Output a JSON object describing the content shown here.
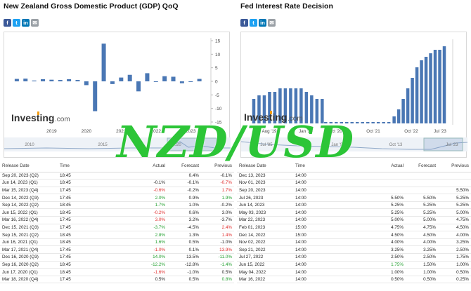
{
  "watermark_text": "NZD/USD",
  "colors": {
    "bar": "#4a77b4",
    "positive": "#1e9e2c",
    "negative": "#e02b2b",
    "watermark": "#2cc537"
  },
  "share_icons": [
    "facebook-icon",
    "twitter-icon",
    "linkedin-icon",
    "email-icon"
  ],
  "gdp": {
    "title": "New Zealand Gross Domestic Product (GDP) QoQ",
    "logo": {
      "main": "Investing",
      "suffix": ".com"
    },
    "table": {
      "headers": [
        "Release Date",
        "Time",
        "Actual",
        "Forecast",
        "Previous"
      ],
      "rows": [
        {
          "date": "Sep 20, 2023 (Q2)",
          "time": "18:45",
          "actual": "",
          "forecast": "0.4%",
          "previous": "-0.1%",
          "ac": "neu",
          "pc": "neu"
        },
        {
          "date": "Jun 14, 2023 (Q1)",
          "time": "18:45",
          "actual": "-0.1%",
          "forecast": "-0.1%",
          "previous": "-0.7%",
          "ac": "neu",
          "pc": "neg"
        },
        {
          "date": "Mar 15, 2023 (Q4)",
          "time": "17:45",
          "actual": "-0.6%",
          "forecast": "-0.2%",
          "previous": "1.7%",
          "ac": "neg",
          "pc": "neg"
        },
        {
          "date": "Dec 14, 2022 (Q3)",
          "time": "17:45",
          "actual": "2.0%",
          "forecast": "0.9%",
          "previous": "1.9%",
          "ac": "pos",
          "pc": "pos"
        },
        {
          "date": "Sep 14, 2022 (Q2)",
          "time": "18:45",
          "actual": "1.7%",
          "forecast": "1.0%",
          "previous": "-0.2%",
          "ac": "pos",
          "pc": "neu"
        },
        {
          "date": "Jun 15, 2022 (Q1)",
          "time": "18:45",
          "actual": "-0.2%",
          "forecast": "0.6%",
          "previous": "3.0%",
          "ac": "neg",
          "pc": "neu"
        },
        {
          "date": "Mar 16, 2022 (Q4)",
          "time": "17:45",
          "actual": "3.0%",
          "forecast": "3.2%",
          "previous": "-3.7%",
          "ac": "neg",
          "pc": "neu"
        },
        {
          "date": "Dec 15, 2021 (Q3)",
          "time": "17:45",
          "actual": "-3.7%",
          "forecast": "-4.5%",
          "previous": "2.4%",
          "ac": "pos",
          "pc": "neg"
        },
        {
          "date": "Sep 15, 2021 (Q2)",
          "time": "18:45",
          "actual": "2.8%",
          "forecast": "1.3%",
          "previous": "1.4%",
          "ac": "pos",
          "pc": "neg"
        },
        {
          "date": "Jun 16, 2021 (Q1)",
          "time": "18:45",
          "actual": "1.6%",
          "forecast": "0.5%",
          "previous": "-1.0%",
          "ac": "pos",
          "pc": "neu"
        },
        {
          "date": "Mar 17, 2021 (Q4)",
          "time": "17:45",
          "actual": "-1.0%",
          "forecast": "0.1%",
          "previous": "13.9%",
          "ac": "neg",
          "pc": "neg"
        },
        {
          "date": "Dec 16, 2020 (Q3)",
          "time": "17:45",
          "actual": "14.0%",
          "forecast": "13.5%",
          "previous": "-11.0%",
          "ac": "pos",
          "pc": "pos"
        },
        {
          "date": "Sep 16, 2020 (Q2)",
          "time": "18:45",
          "actual": "-12.2%",
          "forecast": "-12.8%",
          "previous": "-1.4%",
          "ac": "pos",
          "pc": "pos"
        },
        {
          "date": "Jun 17, 2020 (Q1)",
          "time": "18:45",
          "actual": "-1.6%",
          "forecast": "-1.0%",
          "previous": "0.5%",
          "ac": "neg",
          "pc": "neu"
        },
        {
          "date": "Mar 18, 2020 (Q4)",
          "time": "17:45",
          "actual": "0.5%",
          "forecast": "0.5%",
          "previous": "0.8%",
          "ac": "neu",
          "pc": "pos"
        }
      ]
    }
  },
  "fed": {
    "title": "Fed Interest Rate Decision",
    "logo": {
      "main": "Investing",
      "suffix": ".com"
    },
    "table": {
      "headers": [
        "Release Date",
        "Time",
        "Actual",
        "Forecast",
        "Previous"
      ],
      "rows": [
        {
          "date": "Dec 13, 2023",
          "time": "14:00",
          "actual": "",
          "forecast": "",
          "previous": "",
          "ac": "neu",
          "pc": "neu"
        },
        {
          "date": "Nov 01, 2023",
          "time": "14:00",
          "actual": "",
          "forecast": "",
          "previous": "",
          "ac": "neu",
          "pc": "neu"
        },
        {
          "date": "Sep 20, 2023",
          "time": "14:00",
          "actual": "",
          "forecast": "",
          "previous": "5.50%",
          "ac": "neu",
          "pc": "neu"
        },
        {
          "date": "Jul 26, 2023",
          "time": "14:00",
          "actual": "5.50%",
          "forecast": "5.50%",
          "previous": "5.25%",
          "ac": "neu",
          "pc": "neu"
        },
        {
          "date": "Jun 14, 2023",
          "time": "14:00",
          "actual": "5.25%",
          "forecast": "5.25%",
          "previous": "5.25%",
          "ac": "neu",
          "pc": "neu"
        },
        {
          "date": "May 03, 2023",
          "time": "14:00",
          "actual": "5.25%",
          "forecast": "5.25%",
          "previous": "5.00%",
          "ac": "neu",
          "pc": "neu"
        },
        {
          "date": "Mar 22, 2023",
          "time": "14:00",
          "actual": "5.00%",
          "forecast": "5.00%",
          "previous": "4.75%",
          "ac": "neu",
          "pc": "neu"
        },
        {
          "date": "Feb 01, 2023",
          "time": "15:00",
          "actual": "4.75%",
          "forecast": "4.75%",
          "previous": "4.50%",
          "ac": "neu",
          "pc": "neu"
        },
        {
          "date": "Dec 14, 2022",
          "time": "15:00",
          "actual": "4.50%",
          "forecast": "4.50%",
          "previous": "4.00%",
          "ac": "neu",
          "pc": "neu"
        },
        {
          "date": "Nov 02, 2022",
          "time": "14:00",
          "actual": "4.00%",
          "forecast": "4.00%",
          "previous": "3.25%",
          "ac": "neu",
          "pc": "neu"
        },
        {
          "date": "Sep 21, 2022",
          "time": "14:00",
          "actual": "3.25%",
          "forecast": "3.25%",
          "previous": "2.50%",
          "ac": "neu",
          "pc": "neu"
        },
        {
          "date": "Jul 27, 2022",
          "time": "14:00",
          "actual": "2.50%",
          "forecast": "2.50%",
          "previous": "1.75%",
          "ac": "neu",
          "pc": "neu"
        },
        {
          "date": "Jun 15, 2022",
          "time": "14:00",
          "actual": "1.75%",
          "forecast": "1.50%",
          "previous": "1.00%",
          "ac": "pos",
          "pc": "neu"
        },
        {
          "date": "May 04, 2022",
          "time": "14:00",
          "actual": "1.00%",
          "forecast": "1.00%",
          "previous": "0.50%",
          "ac": "neu",
          "pc": "neu"
        },
        {
          "date": "Mar 16, 2022",
          "time": "14:00",
          "actual": "0.50%",
          "forecast": "0.50%",
          "previous": "0.25%",
          "ac": "neu",
          "pc": "neu"
        }
      ]
    }
  },
  "chart_data": [
    {
      "type": "bar",
      "title": "New Zealand Gross Domestic Product (GDP) QoQ",
      "x_tick_labels": [
        "2019",
        "2020",
        "2021",
        "2022",
        "2023"
      ],
      "y_ticks": [
        "15",
        "10",
        "5",
        "0",
        "-5",
        "-10",
        "-15"
      ],
      "ylim": [
        -15,
        15
      ],
      "navigator_labels": [
        "2010",
        "2015",
        "2020"
      ],
      "x": [
        2018.0,
        2018.25,
        2018.5,
        2018.75,
        2019.0,
        2019.25,
        2019.5,
        2019.75,
        2020.0,
        2020.25,
        2020.5,
        2020.75,
        2021.0,
        2021.25,
        2021.5,
        2021.75,
        2022.0,
        2022.25,
        2022.5,
        2022.75,
        2023.0,
        2023.25
      ],
      "values": [
        0.9,
        1.0,
        0.3,
        0.8,
        0.6,
        0.5,
        0.8,
        0.5,
        -1.4,
        -11.0,
        13.9,
        -1.0,
        1.4,
        2.4,
        -3.7,
        3.0,
        -0.2,
        1.9,
        1.7,
        -0.7,
        -0.1,
        0.9
      ],
      "x_range": [
        2017.8,
        2023.5
      ]
    },
    {
      "type": "bar",
      "title": "Fed Interest Rate Decision",
      "x_tick_labels": [
        "Aug '19",
        "Jan '20",
        "Oct '20",
        "Oct '21",
        "Oct '22",
        "Jul '23"
      ],
      "navigator_labels": [
        "Jul '85",
        "Jan '91",
        "Oct '13",
        "Jul '23"
      ],
      "ylim": [
        0,
        6
      ],
      "x": [
        2018.2,
        2018.35,
        2018.5,
        2018.65,
        2018.8,
        2018.95,
        2019.1,
        2019.25,
        2019.4,
        2019.55,
        2019.7,
        2019.85,
        2020.0,
        2020.15,
        2022.2,
        2022.33,
        2022.46,
        2022.59,
        2022.72,
        2022.85,
        2022.98,
        2023.11,
        2023.24,
        2023.37,
        2023.5,
        2023.63
      ],
      "values": [
        1.75,
        2.0,
        2.0,
        2.25,
        2.25,
        2.5,
        2.5,
        2.5,
        2.5,
        2.5,
        2.25,
        2.0,
        1.75,
        1.75,
        0.5,
        1.0,
        1.75,
        2.5,
        3.25,
        4.0,
        4.5,
        4.75,
        5.0,
        5.25,
        5.25,
        5.5
      ],
      "x_range": [
        2018.0,
        2023.75
      ],
      "zero_rate_period": [
        2020.25,
        2022.1
      ]
    }
  ]
}
